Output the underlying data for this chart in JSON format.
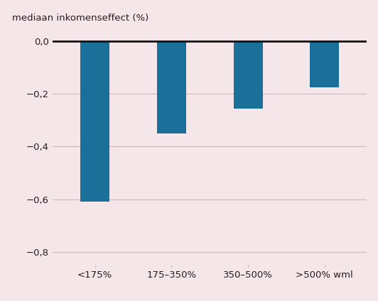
{
  "categories": [
    "<175%",
    "175–350%",
    "350–500%",
    ">500% wml"
  ],
  "values": [
    -0.61,
    -0.35,
    -0.255,
    -0.175
  ],
  "bar_color": "#1b7099",
  "background_color": "#f5e6ea",
  "ylabel": "mediaan inkomenseffect (%)",
  "ylim": [
    -0.85,
    0.02
  ],
  "yticks": [
    0.0,
    -0.2,
    -0.4,
    -0.6,
    -0.8
  ],
  "ytick_labels": [
    "0,0",
    "−0,2",
    "−0,4",
    "−0,6",
    "−0,8"
  ],
  "grid_color": "#ccb8be",
  "zero_line_color": "#111111",
  "bar_width": 0.38,
  "tick_fontsize": 9.5,
  "label_fontsize": 9.5,
  "font_color": "#2a1a1a"
}
